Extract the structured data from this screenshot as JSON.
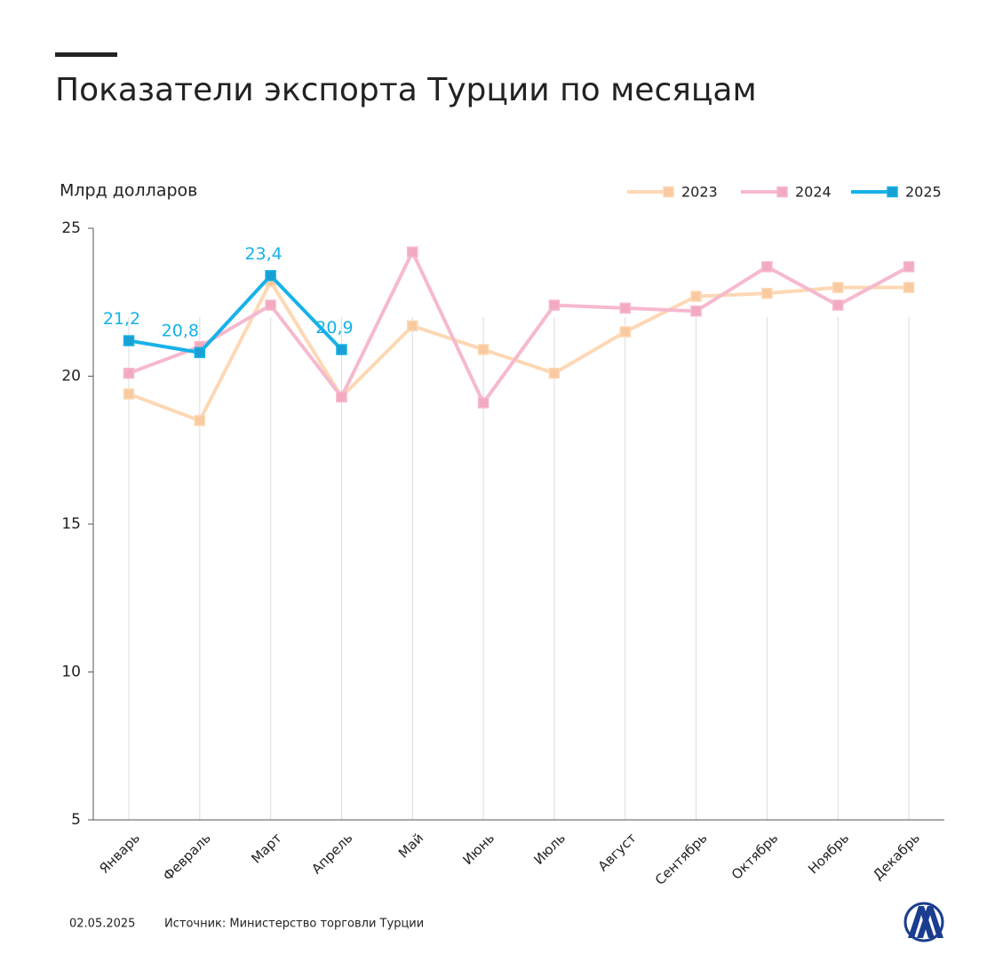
{
  "chart_data": {
    "type": "line",
    "title": "Показатели экспорта Турции по месяцам",
    "y_label": "Млрд долларов",
    "date": "02.05.2025",
    "source": "Источник: Министерство торговли Турции",
    "categories": [
      "Январь",
      "Февраль",
      "Март",
      "Апрель",
      "Май",
      "Июнь",
      "Июль",
      "Август",
      "Сентябрь",
      "Октябрь",
      "Ноябрь",
      "Декабрь"
    ],
    "series": [
      {
        "name": "2023",
        "color": "#fdd8b4",
        "marker_color": "#f9c9a0",
        "values": [
          19.4,
          18.5,
          23.2,
          19.3,
          21.7,
          20.9,
          20.1,
          21.5,
          22.7,
          22.8,
          23.0,
          23.0
        ]
      },
      {
        "name": "2024",
        "color": "#f6b9cd",
        "marker_color": "#f2a9c1",
        "values": [
          20.1,
          21.0,
          22.4,
          19.3,
          24.2,
          19.1,
          22.4,
          22.3,
          22.2,
          23.7,
          22.4,
          23.7
        ]
      },
      {
        "name": "2025",
        "color": "#16b2e8",
        "marker_color": "#1a9fd4",
        "values": [
          21.2,
          20.8,
          23.4,
          20.9,
          null,
          null,
          null,
          null,
          null,
          null,
          null,
          null
        ],
        "value_labels": [
          "21,2",
          "20,8",
          "23,4",
          "20,9",
          null,
          null,
          null,
          null,
          null,
          null,
          null,
          null
        ]
      }
    ],
    "ylim": [
      5,
      25
    ],
    "yticks": [
      5,
      10,
      15,
      20,
      25
    ],
    "grid": "x",
    "legend": "top-right"
  }
}
